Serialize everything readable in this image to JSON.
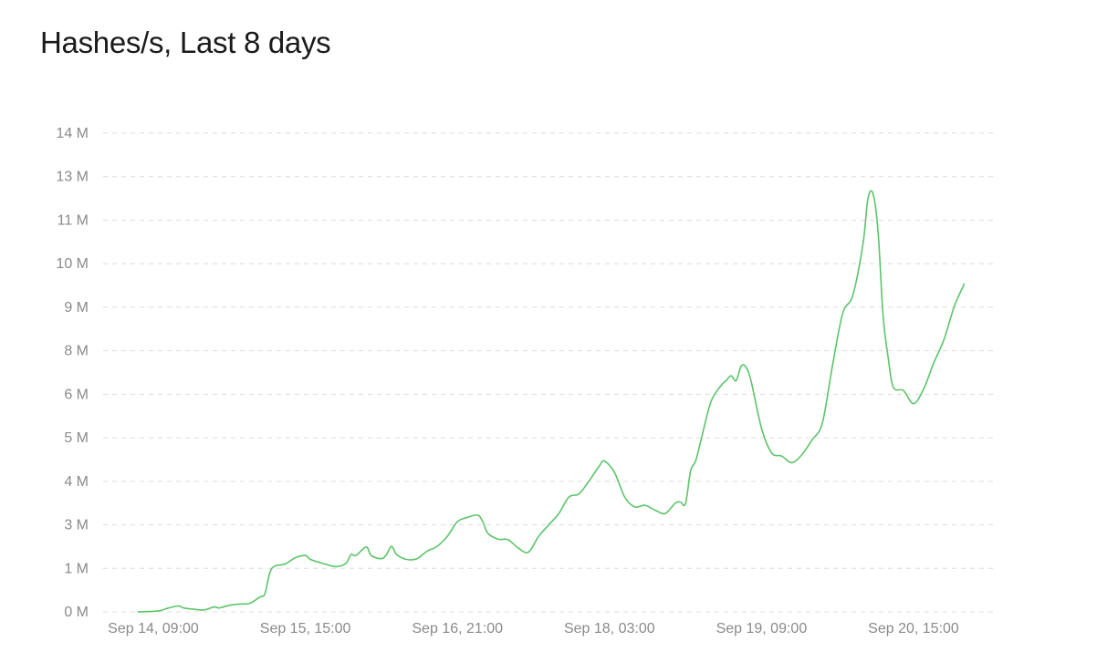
{
  "chart_data": {
    "type": "line",
    "title": "Hashes/s, Last 8 days",
    "xlabel": "",
    "ylabel": "",
    "y_tick_labels": [
      "0 M",
      "1 M",
      "3 M",
      "4 M",
      "5 M",
      "6 M",
      "8 M",
      "9 M",
      "10 M",
      "11 M",
      "13 M",
      "14 M"
    ],
    "ylim": [
      0,
      14.6
    ],
    "x_tick_labels": [
      "Sep 14, 09:00",
      "Sep 15, 15:00",
      "Sep 16, 21:00",
      "Sep 18, 03:00",
      "Sep 19, 09:00",
      "Sep 20, 15:00"
    ],
    "grid": "horizontal-dashed",
    "legend": "none",
    "line_color": "#5cc46a",
    "series": [
      {
        "points": [
          [
            "Sep 14, 06:00",
            0.0
          ],
          [
            "Sep 14, 10:00",
            0.03
          ],
          [
            "Sep 14, 12:00",
            0.12
          ],
          [
            "Sep 14, 14:00",
            0.18
          ],
          [
            "Sep 14, 15:00",
            0.12
          ],
          [
            "Sep 14, 17:00",
            0.08
          ],
          [
            "Sep 14, 19:00",
            0.06
          ],
          [
            "Sep 14, 21:00",
            0.15
          ],
          [
            "Sep 14, 22:00",
            0.12
          ],
          [
            "Sep 15, 00:00",
            0.2
          ],
          [
            "Sep 15, 02:00",
            0.24
          ],
          [
            "Sep 15, 04:00",
            0.26
          ],
          [
            "Sep 15, 06:00",
            0.45
          ],
          [
            "Sep 15, 07:00",
            0.55
          ],
          [
            "Sep 15, 08:00",
            1.2
          ],
          [
            "Sep 15, 09:00",
            1.4
          ],
          [
            "Sep 15, 11:00",
            1.46
          ],
          [
            "Sep 15, 13:00",
            1.65
          ],
          [
            "Sep 15, 15:00",
            1.72
          ],
          [
            "Sep 15, 16:00",
            1.6
          ],
          [
            "Sep 15, 18:00",
            1.5
          ],
          [
            "Sep 15, 21:00",
            1.38
          ],
          [
            "Sep 15, 23:00",
            1.48
          ],
          [
            "Sep 16, 00:00",
            1.75
          ],
          [
            "Sep 16, 01:00",
            1.72
          ],
          [
            "Sep 16, 03:00",
            1.98
          ],
          [
            "Sep 16, 04:00",
            1.72
          ],
          [
            "Sep 16, 06:00",
            1.62
          ],
          [
            "Sep 16, 07:00",
            1.75
          ],
          [
            "Sep 16, 08:00",
            2.0
          ],
          [
            "Sep 16, 09:00",
            1.75
          ],
          [
            "Sep 16, 11:00",
            1.6
          ],
          [
            "Sep 16, 13:00",
            1.62
          ],
          [
            "Sep 16, 15:00",
            1.85
          ],
          [
            "Sep 16, 17:00",
            2.0
          ],
          [
            "Sep 16, 19:00",
            2.3
          ],
          [
            "Sep 16, 21:00",
            2.75
          ],
          [
            "Sep 16, 23:00",
            2.88
          ],
          [
            "Sep 17, 01:00",
            2.95
          ],
          [
            "Sep 17, 02:00",
            2.75
          ],
          [
            "Sep 17, 03:00",
            2.4
          ],
          [
            "Sep 17, 05:00",
            2.22
          ],
          [
            "Sep 17, 07:00",
            2.2
          ],
          [
            "Sep 17, 09:00",
            1.95
          ],
          [
            "Sep 17, 11:00",
            1.82
          ],
          [
            "Sep 17, 13:00",
            2.3
          ],
          [
            "Sep 17, 15:00",
            2.65
          ],
          [
            "Sep 17, 17:00",
            3.0
          ],
          [
            "Sep 17, 19:00",
            3.5
          ],
          [
            "Sep 17, 21:00",
            3.6
          ],
          [
            "Sep 17, 23:00",
            4.0
          ],
          [
            "Sep 18, 01:00",
            4.45
          ],
          [
            "Sep 18, 02:00",
            4.6
          ],
          [
            "Sep 18, 04:00",
            4.25
          ],
          [
            "Sep 18, 06:00",
            3.5
          ],
          [
            "Sep 18, 08:00",
            3.2
          ],
          [
            "Sep 18, 10:00",
            3.25
          ],
          [
            "Sep 18, 12:00",
            3.1
          ],
          [
            "Sep 18, 14:00",
            3.0
          ],
          [
            "Sep 18, 16:00",
            3.32
          ],
          [
            "Sep 18, 17:00",
            3.35
          ],
          [
            "Sep 18, 18:00",
            3.3
          ],
          [
            "Sep 18, 19:00",
            4.3
          ],
          [
            "Sep 18, 20:00",
            4.6
          ],
          [
            "Sep 18, 21:00",
            5.2
          ],
          [
            "Sep 18, 23:00",
            6.4
          ],
          [
            "Sep 19, 01:00",
            6.9
          ],
          [
            "Sep 19, 02:00",
            7.05
          ],
          [
            "Sep 19, 03:00",
            7.2
          ],
          [
            "Sep 19, 04:00",
            7.05
          ],
          [
            "Sep 19, 05:00",
            7.5
          ],
          [
            "Sep 19, 06:00",
            7.45
          ],
          [
            "Sep 19, 07:00",
            7.0
          ],
          [
            "Sep 19, 09:00",
            5.6
          ],
          [
            "Sep 19, 11:00",
            4.85
          ],
          [
            "Sep 19, 13:00",
            4.75
          ],
          [
            "Sep 19, 15:00",
            4.55
          ],
          [
            "Sep 19, 17:00",
            4.8
          ],
          [
            "Sep 19, 19:00",
            5.25
          ],
          [
            "Sep 19, 21:00",
            5.75
          ],
          [
            "Sep 19, 23:00",
            7.5
          ],
          [
            "Sep 20, 01:00",
            9.1
          ],
          [
            "Sep 20, 03:00",
            9.65
          ],
          [
            "Sep 20, 05:00",
            11.2
          ],
          [
            "Sep 20, 06:00",
            12.6
          ],
          [
            "Sep 20, 07:00",
            12.75
          ],
          [
            "Sep 20, 08:00",
            11.6
          ],
          [
            "Sep 20, 09:00",
            9.0
          ],
          [
            "Sep 20, 10:00",
            7.75
          ],
          [
            "Sep 20, 11:00",
            6.85
          ],
          [
            "Sep 20, 13:00",
            6.75
          ],
          [
            "Sep 20, 15:00",
            6.35
          ],
          [
            "Sep 20, 17:00",
            6.8
          ],
          [
            "Sep 20, 19:00",
            7.6
          ],
          [
            "Sep 20, 21:00",
            8.3
          ],
          [
            "Sep 20, 23:00",
            9.3
          ],
          [
            "Sep 21, 01:00",
            10.0
          ]
        ]
      }
    ]
  }
}
